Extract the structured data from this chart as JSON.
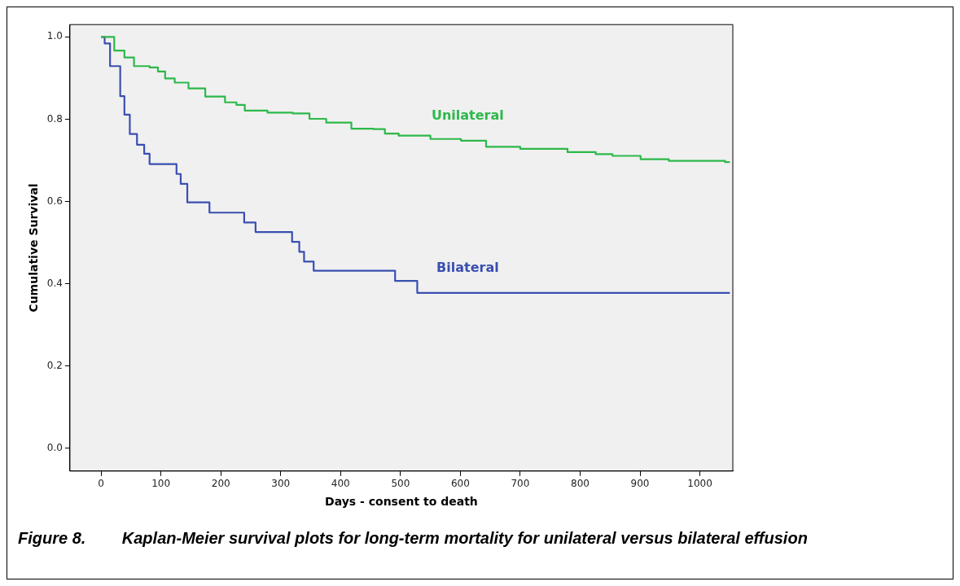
{
  "chart_data": {
    "type": "step",
    "xlabel": "Days - consent to death",
    "ylabel": "Cumulative Survival",
    "xlim": [
      -52,
      1055
    ],
    "ylim": [
      -0.055,
      1.03
    ],
    "xticks": [
      0,
      100,
      200,
      300,
      400,
      500,
      600,
      700,
      800,
      900,
      1000
    ],
    "yticks": [
      {
        "value": 0,
        "label": "0.0"
      },
      {
        "value": 0.2,
        "label": "0.2"
      },
      {
        "value": 0.4,
        "label": "0.4"
      },
      {
        "value": 0.6,
        "label": "0.6"
      },
      {
        "value": 0.8,
        "label": "0.8"
      },
      {
        "value": 1,
        "label": "1.0"
      }
    ],
    "grid": false,
    "legend": false,
    "marker": "none",
    "line_style": "solid",
    "series": [
      {
        "name": "Unilateral",
        "color": "#2db84a",
        "x": [
          0,
          22,
          39,
          55,
          81,
          95,
          107,
          123,
          146,
          174,
          207,
          226,
          240,
          278,
          320,
          348,
          376,
          418,
          455,
          474,
          497,
          550,
          601,
          643,
          700,
          779,
          826,
          854,
          901,
          948,
          1042,
          1050
        ],
        "values": [
          1.0,
          0.967,
          0.95,
          0.929,
          0.926,
          0.916,
          0.899,
          0.889,
          0.875,
          0.855,
          0.841,
          0.835,
          0.821,
          0.816,
          0.814,
          0.801,
          0.792,
          0.777,
          0.776,
          0.765,
          0.76,
          0.752,
          0.748,
          0.733,
          0.728,
          0.72,
          0.715,
          0.711,
          0.703,
          0.699,
          0.696,
          0.696
        ]
      },
      {
        "name": "Bilateral",
        "color": "#3a4fb0",
        "x": [
          0,
          6,
          15,
          32,
          39,
          48,
          60,
          72,
          81,
          126,
          133,
          144,
          181,
          239,
          258,
          319,
          331,
          339,
          355,
          491,
          528,
          1050
        ],
        "values": [
          1.0,
          0.984,
          0.929,
          0.856,
          0.811,
          0.764,
          0.738,
          0.716,
          0.691,
          0.667,
          0.643,
          0.598,
          0.573,
          0.549,
          0.526,
          0.502,
          0.478,
          0.454,
          0.432,
          0.407,
          0.378,
          0.378
        ]
      }
    ],
    "annotations": [
      "Figure 8.\tKaplan-Meier survival plots for long-term mortality for unilateral versus bilateral effusion"
    ]
  }
}
